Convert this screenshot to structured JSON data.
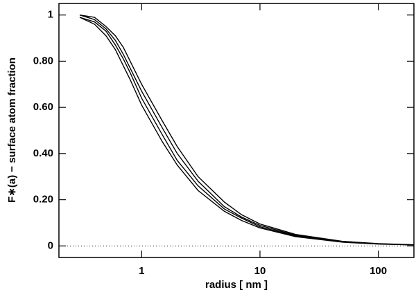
{
  "chart_data": {
    "type": "line",
    "xlabel": "radius [ nm ]",
    "ylabel": "F∗(a) − surface atom fraction",
    "x": [
      0.3,
      0.4,
      0.5,
      0.6,
      0.7,
      0.8,
      1,
      1.5,
      2,
      3,
      5,
      7,
      10,
      20,
      50,
      100,
      200
    ],
    "series": [
      {
        "color": "#000000",
        "values": [
          0.99,
          0.96,
          0.91,
          0.85,
          0.78,
          0.72,
          0.61,
          0.45,
          0.35,
          0.24,
          0.15,
          0.11,
          0.078,
          0.04,
          0.016,
          0.008,
          0.004
        ]
      },
      {
        "color": "#000000",
        "values": [
          0.99,
          0.97,
          0.93,
          0.87,
          0.81,
          0.75,
          0.64,
          0.48,
          0.37,
          0.26,
          0.16,
          0.12,
          0.083,
          0.043,
          0.017,
          0.009,
          0.0045
        ]
      },
      {
        "color": "#000000",
        "values": [
          1.0,
          0.98,
          0.94,
          0.89,
          0.83,
          0.77,
          0.67,
          0.51,
          0.4,
          0.28,
          0.17,
          0.125,
          0.089,
          0.046,
          0.019,
          0.009,
          0.005
        ]
      },
      {
        "color": "#000000",
        "values": [
          1.0,
          0.99,
          0.95,
          0.91,
          0.86,
          0.8,
          0.7,
          0.54,
          0.43,
          0.3,
          0.19,
          0.135,
          0.095,
          0.05,
          0.02,
          0.01,
          0.005
        ]
      }
    ],
    "xlog": true,
    "xlim": [
      0.2,
      200
    ],
    "ylim": [
      -0.05,
      1.05
    ],
    "xticks": [
      1,
      10,
      100
    ],
    "yticks": [
      0,
      {
        "value": 0.2,
        "label": "0.20"
      },
      {
        "value": 0.4,
        "label": "0.40"
      },
      {
        "value": 0.6,
        "label": "0.60"
      },
      {
        "value": 0.8,
        "label": "0.80"
      },
      1
    ],
    "zero_line": 0
  }
}
